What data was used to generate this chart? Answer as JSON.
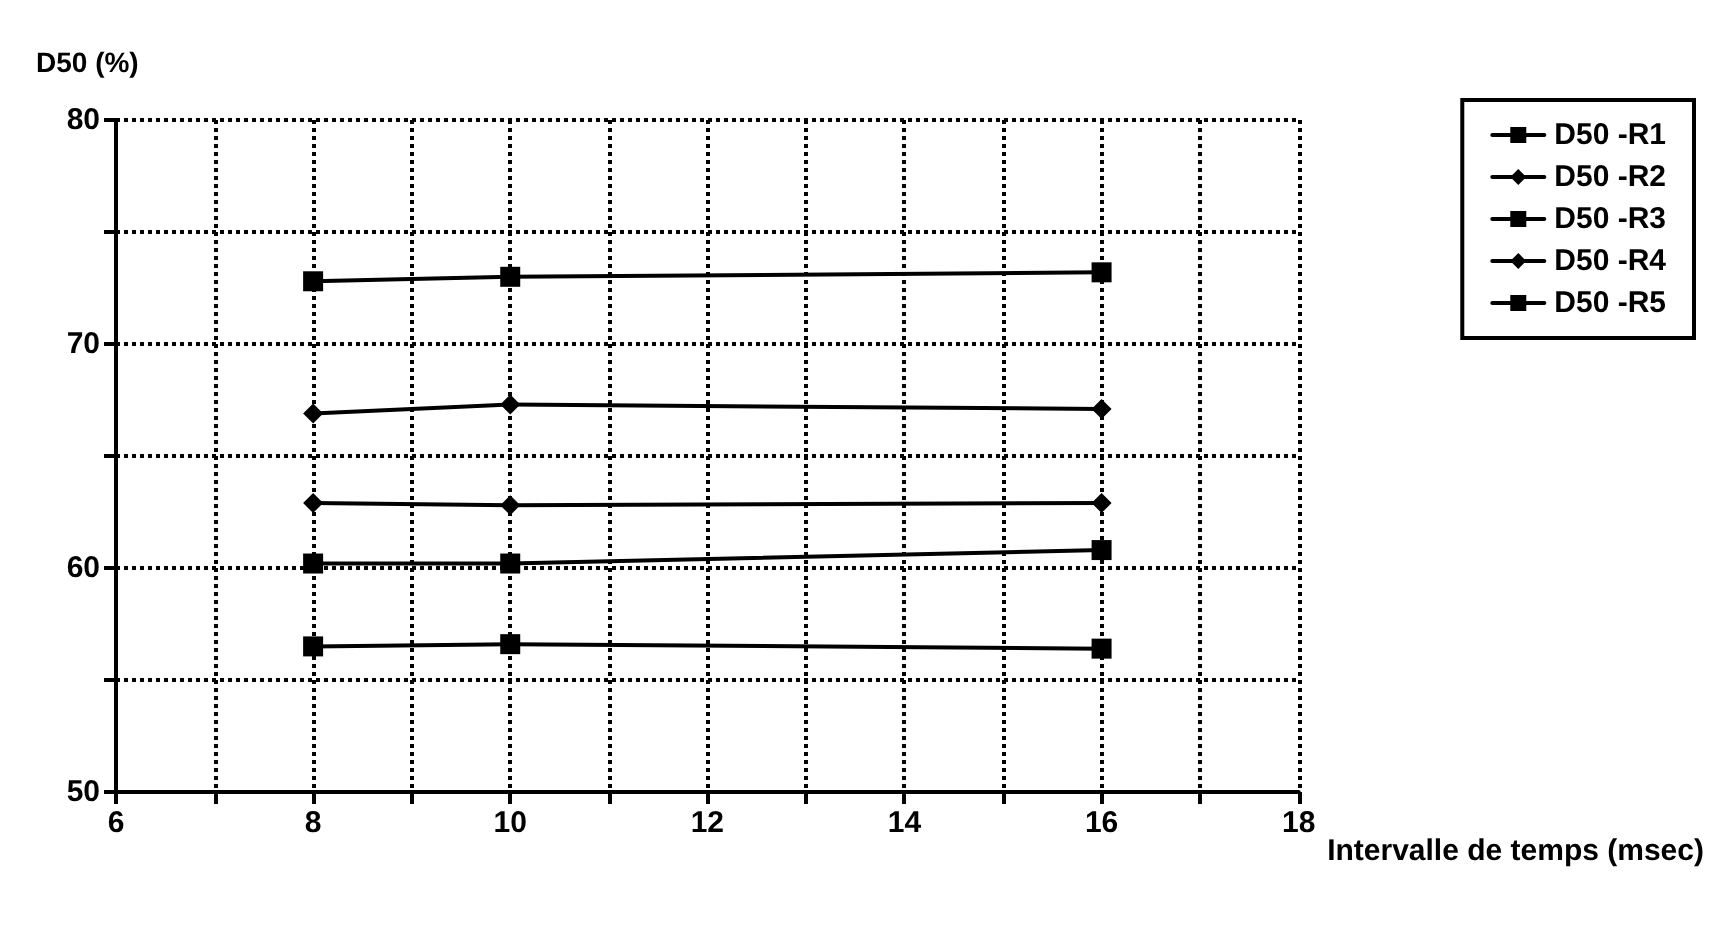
{
  "chart_data": {
    "type": "line",
    "ylabel": "D50 (%)",
    "xlabel": "Intervalle de temps (msec)",
    "x": [
      8,
      10,
      16
    ],
    "series": [
      {
        "name": "D50 -R1",
        "color": "#000000",
        "marker": "square",
        "values": [
          72.8,
          73.0,
          73.2
        ]
      },
      {
        "name": "D50 -R2",
        "color": "#000000",
        "marker": "diamond",
        "values": [
          66.9,
          67.3,
          67.1
        ]
      },
      {
        "name": "D50 -R3",
        "color": "#000000",
        "marker": "square",
        "values": [
          60.2,
          60.2,
          60.8
        ]
      },
      {
        "name": "D50 -R4",
        "color": "#000000",
        "marker": "diamond",
        "values": [
          62.9,
          62.8,
          62.9
        ]
      },
      {
        "name": "D50 -R5",
        "color": "#000000",
        "marker": "square",
        "values": [
          56.5,
          56.6,
          56.4
        ]
      }
    ],
    "xlim": [
      6,
      18
    ],
    "xticks": [
      6,
      {
        "value": 7,
        "label": null
      },
      8,
      {
        "value": 9,
        "label": null
      },
      10,
      {
        "value": 11,
        "label": null
      },
      12,
      {
        "value": 13,
        "label": null
      },
      14,
      {
        "value": 15,
        "label": null
      },
      16,
      {
        "value": 17,
        "label": null
      },
      18
    ],
    "ylim": [
      50,
      80
    ],
    "yticks": [
      50,
      {
        "value": 55,
        "label": null
      },
      60,
      {
        "value": 65,
        "label": null
      },
      70,
      {
        "value": 75,
        "label": null
      },
      80
    ],
    "grid": true,
    "legend": "right",
    "line_style": "solid"
  }
}
